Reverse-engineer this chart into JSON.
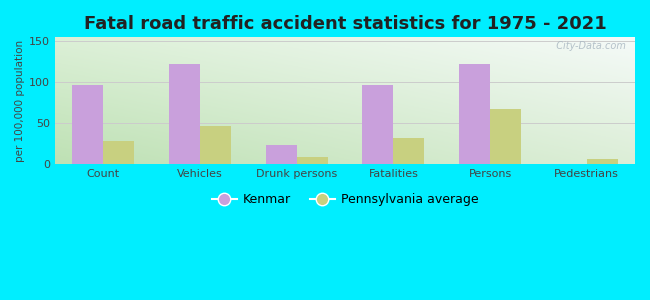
{
  "title": "Fatal road traffic accident statistics for 1975 - 2021",
  "categories": [
    "Count",
    "Vehicles",
    "Drunk persons",
    "Fatalities",
    "Persons",
    "Pedestrians"
  ],
  "kenmar": [
    97,
    122,
    23,
    97,
    122,
    0
  ],
  "pa_avg": [
    28,
    47,
    9,
    32,
    68,
    6
  ],
  "kenmar_color": "#c9a0dc",
  "pa_color": "#c8d080",
  "ylabel": "per 100,000 population",
  "ylim": [
    0,
    155
  ],
  "yticks": [
    0,
    50,
    100,
    150
  ],
  "bar_width": 0.32,
  "outer_bg": "#00eeff",
  "title_fontsize": 13,
  "legend_labels": [
    "Kenmar",
    "Pennsylvania average"
  ],
  "watermark": "  City-Data.com",
  "grad_left_color": "#c8e6c0",
  "grad_right_color": "#f0f4f0",
  "tick_fontsize": 8,
  "label_fontsize": 7.5
}
